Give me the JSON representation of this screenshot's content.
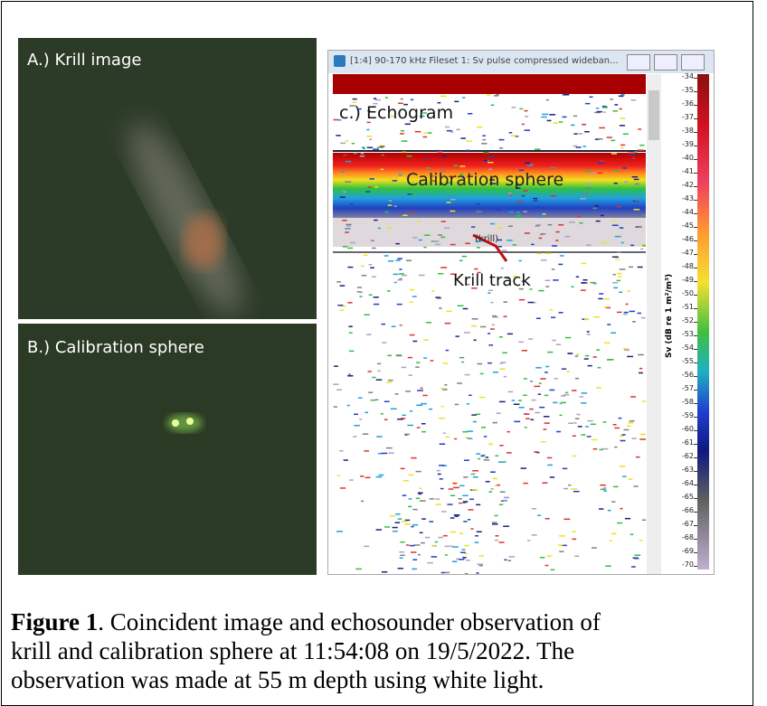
{
  "panels": {
    "a": {
      "label": "A.) Krill image"
    },
    "b": {
      "label": "B.) Calibration sphere"
    },
    "c": {
      "label": "c.) Echogram",
      "window_title": "[1:4] 90-170 kHz Fileset 1: Sv pulse compressed wideban...",
      "annotations": [
        "Calibration sphere",
        "(krill)",
        "Krill track"
      ]
    }
  },
  "colorbar": {
    "label": "Sv (dB re 1 m²/m³)",
    "ticks": [
      -34,
      -35,
      -36,
      -37,
      -38,
      -39,
      -40,
      -41,
      -42,
      -43,
      -44,
      -45,
      -46,
      -47,
      -48,
      -49,
      -50,
      -51,
      -52,
      -53,
      -54,
      -55,
      -56,
      -57,
      -58,
      -59,
      -60,
      -61,
      -62,
      -63,
      -64,
      -65,
      -66,
      -67,
      -68,
      -69,
      -70
    ]
  },
  "caption": {
    "label": "Figure 1",
    "lines": [
      ". Coincident image and echosounder observation of",
      "krill and calibration sphere at 11:54:08 on 19/5/2022. The",
      "observation was made at 55 m depth using white light."
    ]
  }
}
